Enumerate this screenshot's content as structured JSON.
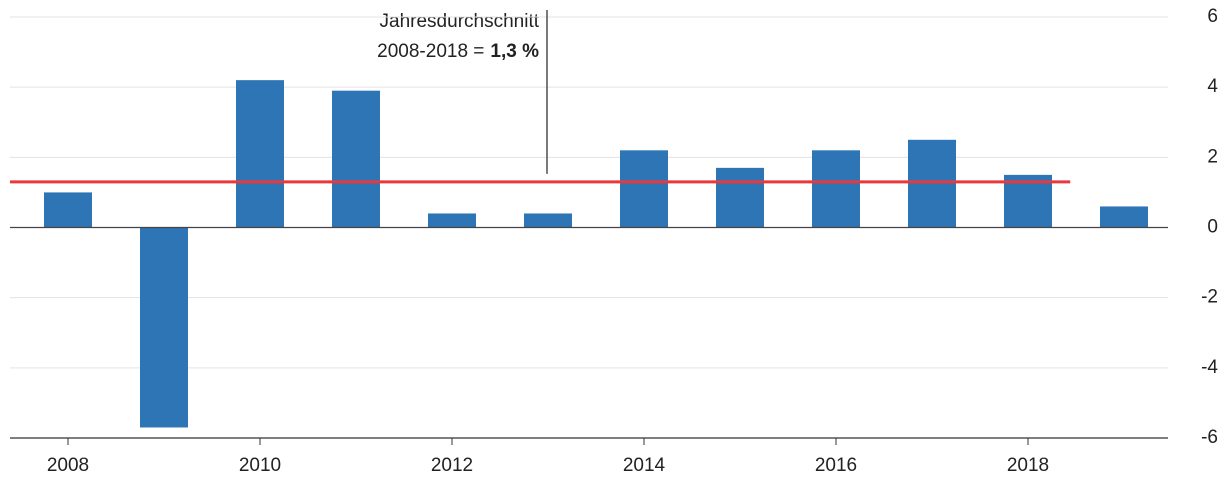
{
  "chart_data": {
    "type": "bar",
    "categories": [
      "2008",
      null,
      "2010",
      null,
      "2012",
      null,
      "2014",
      null,
      "2016",
      null,
      "2018",
      null
    ],
    "values": [
      1.0,
      -5.7,
      4.2,
      3.9,
      0.4,
      0.4,
      2.2,
      1.7,
      2.2,
      2.5,
      1.5,
      0.6
    ],
    "color": "#2e75b6",
    "ylim": [
      -6,
      6
    ],
    "yticks": [
      -6,
      -4,
      -2,
      0,
      2,
      4,
      6
    ],
    "grid": true,
    "average": {
      "value": 1.3,
      "color": "#e8393c",
      "text": "Jahresdurchschnitt",
      "period": "2008-2018 =",
      "label": "1,3 %"
    }
  }
}
